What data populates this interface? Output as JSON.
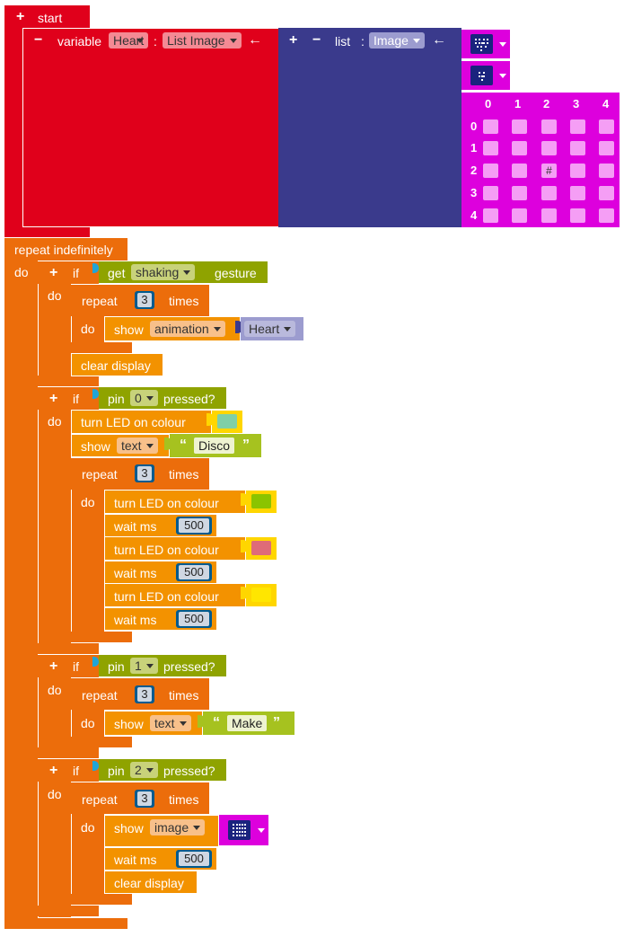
{
  "start": {
    "label": "start"
  },
  "variable": {
    "label": "variable",
    "name": "Heart",
    "colon": ":",
    "type": "List Image",
    "arrow": "←"
  },
  "list_block": {
    "label": "list",
    "colon": ":",
    "type": "Image",
    "arrow": "←"
  },
  "image_grid": {
    "col_headers": [
      "0",
      "1",
      "2",
      "3",
      "4"
    ],
    "row_headers": [
      "0",
      "1",
      "2",
      "3",
      "4"
    ],
    "marked_cell": {
      "row": 2,
      "col": 2,
      "symbol": "#"
    }
  },
  "repeat_forever": {
    "label": "repeat indefinitely",
    "do": "do"
  },
  "if1": {
    "if": "if",
    "do": "do",
    "cond": {
      "get": "get",
      "dropdown": "shaking",
      "suffix": "gesture"
    },
    "repeat": {
      "label": "repeat",
      "count": "3",
      "times": "times",
      "do": "do"
    },
    "show": {
      "label": "show",
      "dropdown": "animation",
      "var": "Heart"
    },
    "clear": {
      "label": "clear display"
    }
  },
  "if2": {
    "if": "if",
    "do": "do",
    "cond": {
      "pin": "pin",
      "num": "0",
      "suffix": "pressed?"
    },
    "led1": {
      "label": "turn LED on  colour",
      "color": "#7fcfa7"
    },
    "show": {
      "label": "show",
      "dropdown": "text",
      "value": "Disco"
    },
    "repeat": {
      "label": "repeat",
      "count": "3",
      "times": "times",
      "do": "do"
    },
    "led_green": {
      "label": "turn LED on  colour",
      "color": "#8bc400"
    },
    "wait1": {
      "label": "wait ms",
      "value": "500"
    },
    "led_red": {
      "label": "turn LED on  colour",
      "color": "#df6b78"
    },
    "wait2": {
      "label": "wait ms",
      "value": "500"
    },
    "led_yellow": {
      "label": "turn LED on  colour",
      "color": "#ffe600"
    },
    "wait3": {
      "label": "wait ms",
      "value": "500"
    }
  },
  "if3": {
    "if": "if",
    "do": "do",
    "cond": {
      "pin": "pin",
      "num": "1",
      "suffix": "pressed?"
    },
    "repeat": {
      "label": "repeat",
      "count": "3",
      "times": "times",
      "do": "do"
    },
    "show": {
      "label": "show",
      "dropdown": "text",
      "value": "Make"
    }
  },
  "if4": {
    "if": "if",
    "do": "do",
    "cond": {
      "pin": "pin",
      "num": "2",
      "suffix": "pressed?"
    },
    "repeat": {
      "label": "repeat",
      "count": "3",
      "times": "times",
      "do": "do"
    },
    "show": {
      "label": "show",
      "dropdown": "image"
    },
    "wait": {
      "label": "wait ms",
      "value": "500"
    },
    "clear": {
      "label": "clear display"
    }
  },
  "colors": {
    "start_red": "#e0001b",
    "list_navy": "#3a3a8c",
    "image_magenta": "#dd00dd",
    "loop_orange": "#ec6d0b",
    "action_orange": "#f39200",
    "logic_olive": "#8fa300",
    "text_lime": "#a6c21f"
  }
}
